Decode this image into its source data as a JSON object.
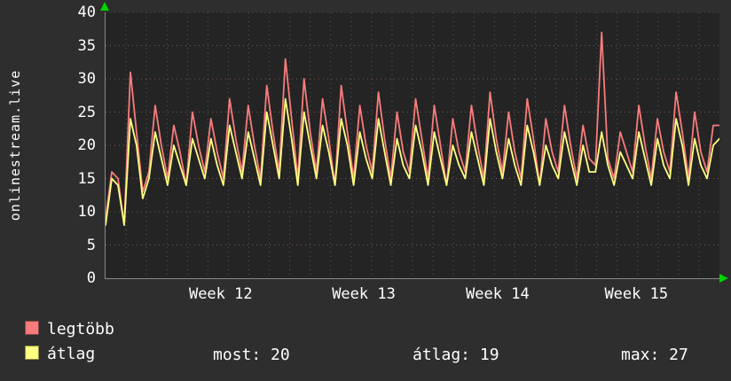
{
  "chart_data": {
    "type": "line",
    "title": "onlinestream.live",
    "xlabel": "",
    "ylabel": "",
    "ylim": [
      0,
      40
    ],
    "yticks": [
      0,
      5,
      10,
      15,
      20,
      25,
      30,
      35,
      40
    ],
    "xticks": [
      {
        "label": "Week 12",
        "x": 0.189
      },
      {
        "label": "Week 13",
        "x": 0.422
      },
      {
        "label": "Week 14",
        "x": 0.64
      },
      {
        "label": "Week 15",
        "x": 0.866
      }
    ],
    "grid": {
      "on": true,
      "v_divisions": 30,
      "v_color": "#9a9a9a",
      "h_color": "#d08080"
    },
    "legend_position": "bottom-left",
    "series": [
      {
        "name": "legtöbb",
        "color": "#f87c7c",
        "values": [
          9,
          16,
          15,
          8,
          31,
          22,
          13,
          16,
          26,
          20,
          15,
          23,
          19,
          14,
          25,
          20,
          16,
          24,
          19,
          15,
          27,
          21,
          16,
          26,
          20,
          15,
          29,
          22,
          16,
          33,
          24,
          15,
          30,
          22,
          16,
          27,
          21,
          14,
          29,
          22,
          15,
          26,
          20,
          16,
          28,
          21,
          15,
          25,
          19,
          16,
          27,
          21,
          15,
          26,
          20,
          14,
          24,
          19,
          16,
          26,
          20,
          15,
          28,
          21,
          16,
          25,
          19,
          15,
          27,
          21,
          14,
          24,
          19,
          16,
          26,
          20,
          15,
          23,
          18,
          17,
          37,
          18,
          15,
          22,
          19,
          16,
          26,
          20,
          15,
          24,
          19,
          16,
          28,
          22,
          15,
          25,
          19,
          16,
          23,
          23
        ]
      },
      {
        "name": "átlag",
        "color": "#ffff80",
        "values": [
          8,
          15,
          14,
          8,
          24,
          20,
          12,
          15,
          22,
          18,
          14,
          20,
          17,
          14,
          21,
          18,
          15,
          21,
          17,
          14,
          23,
          19,
          15,
          22,
          18,
          14,
          25,
          20,
          15,
          27,
          21,
          14,
          25,
          20,
          15,
          23,
          19,
          14,
          24,
          20,
          14,
          22,
          18,
          15,
          24,
          19,
          14,
          21,
          17,
          15,
          23,
          19,
          14,
          22,
          18,
          14,
          20,
          17,
          15,
          22,
          18,
          14,
          24,
          19,
          15,
          21,
          17,
          14,
          23,
          19,
          14,
          20,
          17,
          15,
          22,
          18,
          14,
          20,
          16,
          16,
          22,
          17,
          14,
          19,
          17,
          15,
          22,
          18,
          14,
          21,
          17,
          15,
          24,
          20,
          14,
          21,
          17,
          15,
          20,
          21
        ]
      }
    ]
  },
  "stats": {
    "most": "most: 20",
    "atlag": "átlag: 19",
    "max": "max: 27"
  },
  "colors": {
    "background": "#2e2e2e",
    "plot_background": "#242424",
    "text": "#ffffff",
    "axis": "#8a8a8a",
    "arrow": "#00d400"
  }
}
